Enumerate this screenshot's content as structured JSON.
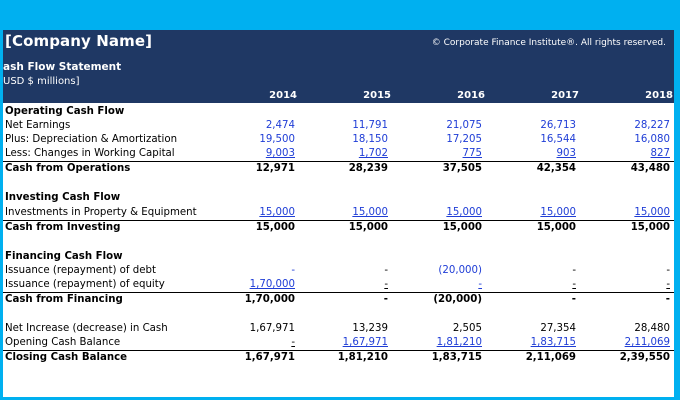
{
  "header": {
    "company": "[Company Name]",
    "copyright": "© Corporate Finance Institute®. All rights reserved.",
    "statement_title": "ash Flow Statement",
    "statement_sub": "USD $ millions]"
  },
  "years": [
    "2014",
    "2015",
    "2016",
    "2017",
    "2018"
  ],
  "operating": {
    "title": "Operating Cash Flow",
    "rows": [
      {
        "label": "Net Earnings",
        "values": [
          "2,474",
          "11,791",
          "21,075",
          "26,713",
          "28,227"
        ]
      },
      {
        "label": "Plus: Depreciation & Amortization",
        "values": [
          "19,500",
          "18,150",
          "17,205",
          "16,544",
          "16,080"
        ]
      },
      {
        "label": "Less: Changes in Working Capital",
        "values": [
          "9,003",
          "1,702",
          "775",
          "903",
          "827"
        ]
      }
    ],
    "total": {
      "label": "Cash from Operations",
      "values": [
        "12,971",
        "28,239",
        "37,505",
        "42,354",
        "43,480"
      ]
    }
  },
  "investing": {
    "title": "Investing Cash Flow",
    "rows": [
      {
        "label": "Investments in Property & Equipment",
        "values": [
          "15,000",
          "15,000",
          "15,000",
          "15,000",
          "15,000"
        ]
      }
    ],
    "total": {
      "label": "Cash from Investing",
      "values": [
        "15,000",
        "15,000",
        "15,000",
        "15,000",
        "15,000"
      ]
    }
  },
  "financing": {
    "title": "Financing Cash Flow",
    "rows": [
      {
        "label": "Issuance (repayment) of debt",
        "values": [
          "-",
          "-",
          "(20,000)",
          "-",
          "-"
        ]
      },
      {
        "label": "Issuance (repayment) of equity",
        "values": [
          "1,70,000",
          "-",
          "-",
          "-",
          "-"
        ]
      }
    ],
    "total": {
      "label": "Cash from Financing",
      "values": [
        "1,70,000",
        "-",
        "(20,000)",
        "-",
        "-"
      ]
    }
  },
  "summary": {
    "net_increase": {
      "label": "Net Increase (decrease) in Cash",
      "values": [
        "1,67,971",
        "13,239",
        "2,505",
        "27,354",
        "28,480"
      ]
    },
    "opening": {
      "label": "Opening Cash Balance",
      "values": [
        "-",
        "1,67,971",
        "1,81,210",
        "1,83,715",
        "2,11,069"
      ]
    },
    "closing": {
      "label": "Closing Cash Balance",
      "values": [
        "1,67,971",
        "1,81,210",
        "1,83,715",
        "2,11,069",
        "2,39,550"
      ]
    }
  },
  "colors": {
    "frame": "#00b0f0",
    "header_bg": "#1f3864",
    "input_blue": "#1f3dd6"
  }
}
